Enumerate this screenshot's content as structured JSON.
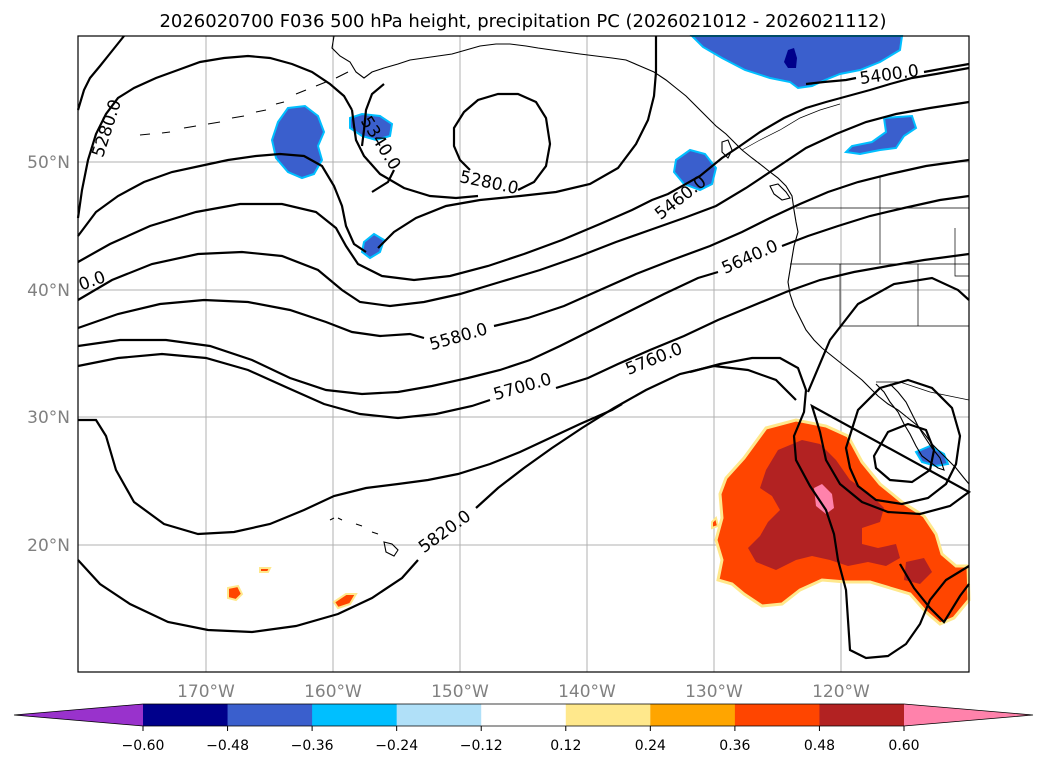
{
  "title": "2026020700 F036 500 hPa height, precipitation PC (2026021012 - 2026021112)",
  "map": {
    "lat_labels": [
      "50°N",
      "40°N",
      "30°N",
      "20°N"
    ],
    "lon_labels": [
      "170°W",
      "160°W",
      "150°W",
      "140°W",
      "130°W",
      "120°W"
    ]
  },
  "contour_labels": [
    "5280.0",
    "5340.0",
    "5280.0",
    "5400.0",
    "5460.0",
    "5640.0",
    "0.0",
    "5580.0",
    "5700.0",
    "5760.0",
    "5820.0"
  ],
  "colorbar": {
    "ticks": [
      "−0.60",
      "−0.48",
      "−0.36",
      "−0.24",
      "−0.12",
      "0.12",
      "0.24",
      "0.36",
      "0.48",
      "0.60"
    ],
    "colors": [
      "#9932cc",
      "#00008b",
      "#3a5fcd",
      "#00bfff",
      "#b0e0f8",
      "#ffffff",
      "#ffe88c",
      "#ffa500",
      "#ff4500",
      "#b22222",
      "#ff82ab"
    ]
  },
  "fill_colors": {
    "neg_blue": "#3a5fcd",
    "neg_dark": "#00008b",
    "neg_edge": "#00bfff",
    "pos_orange": "#ff4500",
    "pos_dark": "#b22222",
    "pos_pink": "#ff82ab",
    "pos_edge": "#ffe88c"
  }
}
